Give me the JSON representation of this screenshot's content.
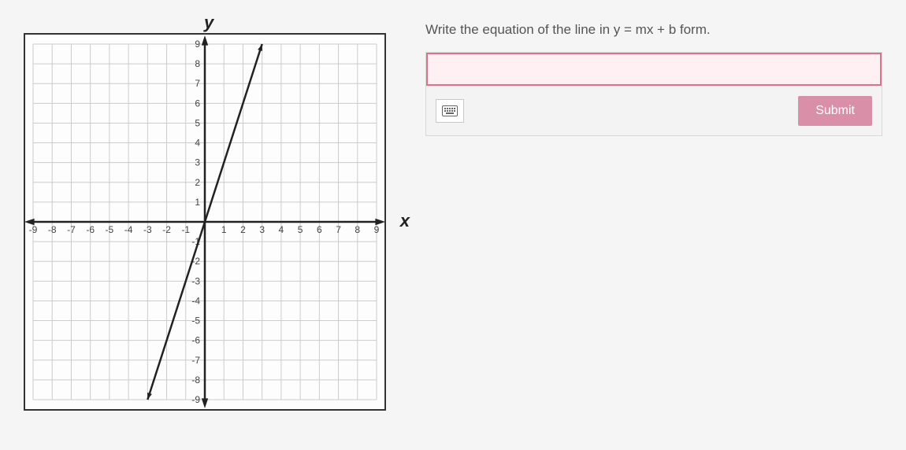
{
  "prompt": "Write the equation of the line in y = mx + b form.",
  "input_value": "",
  "input_placeholder": "",
  "submit_label": "Submit",
  "graph": {
    "type": "line",
    "x_axis_label": "x",
    "y_axis_label": "y",
    "xlim": [
      -9,
      9
    ],
    "ylim": [
      -9,
      9
    ],
    "xtick_step": 1,
    "ytick_step": 1,
    "x_ticks": [
      -9,
      -8,
      -7,
      -6,
      -5,
      -4,
      -3,
      -2,
      -1,
      1,
      2,
      3,
      4,
      5,
      6,
      7,
      8,
      9
    ],
    "y_ticks": [
      9,
      8,
      7,
      6,
      5,
      4,
      3,
      2,
      1,
      -1,
      -2,
      -3,
      -4,
      -5,
      -6,
      -7,
      -8,
      -9
    ],
    "background_color": "#fdfdfd",
    "grid_color": "#cccccc",
    "axis_color": "#222222",
    "line_color": "#222222",
    "line_width": 2.5,
    "arrowheads": true,
    "line_points": [
      {
        "x": -3,
        "y": -9
      },
      {
        "x": 3,
        "y": 9
      }
    ],
    "slope": 3,
    "y_intercept": 0
  },
  "colors": {
    "panel_border": "#d8d8d8",
    "input_border": "#d6768e",
    "input_bg": "#fff0f3",
    "submit_bg": "#d98fa8",
    "submit_text": "#ffffff",
    "prompt_text": "#555555"
  }
}
